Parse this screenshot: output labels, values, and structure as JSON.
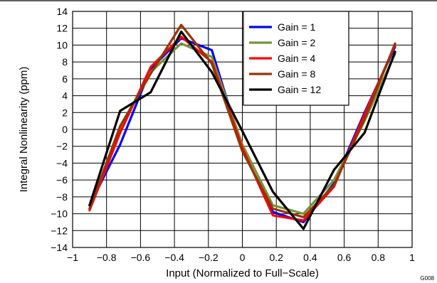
{
  "figure_id": "G008",
  "chart_data": {
    "type": "line",
    "xlabel": "Input (Normalized to Full−Scale)",
    "ylabel": "Integral Nonlinearity (ppm)",
    "xlim": [
      -1,
      1
    ],
    "ylim": [
      -14,
      14
    ],
    "x_ticks": [
      -1,
      -0.8,
      -0.6,
      -0.4,
      -0.2,
      0,
      0.2,
      0.4,
      0.6,
      0.8,
      1
    ],
    "y_ticks": [
      -14,
      -12,
      -10,
      -8,
      -6,
      -4,
      -2,
      0,
      2,
      4,
      6,
      8,
      10,
      12,
      14
    ],
    "x_tick_labels": [
      "−1",
      "−0.8",
      "−0.6",
      "−0.4",
      "−0.2",
      "0",
      "0.2",
      "0.4",
      "0.6",
      "0.8",
      "1"
    ],
    "y_tick_labels": [
      "−14",
      "−12",
      "−10",
      "−8",
      "−6",
      "−4",
      "−2",
      "0",
      "2",
      "4",
      "6",
      "8",
      "10",
      "12",
      "14"
    ],
    "grid": true,
    "legend_position": "top-right",
    "series": [
      {
        "name": "Gain = 1",
        "color": "#0000ff",
        "x": [
          -0.9,
          -0.72,
          -0.54,
          -0.36,
          -0.18,
          0,
          0.18,
          0.36,
          0.54,
          0.72,
          0.9
        ],
        "y": [
          -9.0,
          -1.8,
          7.2,
          10.8,
          9.4,
          -2.4,
          -9.8,
          -11.0,
          -6.4,
          2.0,
          9.8
        ]
      },
      {
        "name": "Gain = 2",
        "color": "#77933c",
        "x": [
          -0.9,
          -0.72,
          -0.54,
          -0.36,
          -0.18,
          0,
          0.18,
          0.36,
          0.54,
          0.72,
          0.9
        ],
        "y": [
          -9.4,
          0.2,
          6.8,
          10.2,
          8.6,
          -1.8,
          -9.0,
          -10.0,
          -6.0,
          1.0,
          9.0
        ]
      },
      {
        "name": "Gain = 4",
        "color": "#ff0000",
        "x": [
          -0.9,
          -0.72,
          -0.54,
          -0.36,
          -0.18,
          0,
          0.18,
          0.36,
          0.54,
          0.72,
          0.9
        ],
        "y": [
          -9.6,
          -0.4,
          7.4,
          11.0,
          8.0,
          -2.2,
          -10.2,
          -10.8,
          -6.8,
          1.8,
          10.0
        ]
      },
      {
        "name": "Gain = 8",
        "color": "#993300",
        "x": [
          -0.9,
          -0.72,
          -0.54,
          -0.36,
          -0.18,
          0,
          0.18,
          0.36,
          0.54,
          0.72,
          0.9
        ],
        "y": [
          -9.4,
          0.4,
          6.6,
          12.4,
          7.8,
          -2.6,
          -9.4,
          -10.4,
          -6.6,
          1.2,
          10.2
        ]
      },
      {
        "name": "Gain = 12",
        "color": "#000000",
        "x": [
          -0.9,
          -0.72,
          -0.54,
          -0.36,
          -0.18,
          0,
          0.18,
          0.36,
          0.54,
          0.72,
          0.9
        ],
        "y": [
          -9.0,
          2.2,
          4.4,
          11.6,
          6.8,
          -0.2,
          -7.4,
          -11.8,
          -4.8,
          -0.4,
          9.2
        ]
      }
    ]
  }
}
